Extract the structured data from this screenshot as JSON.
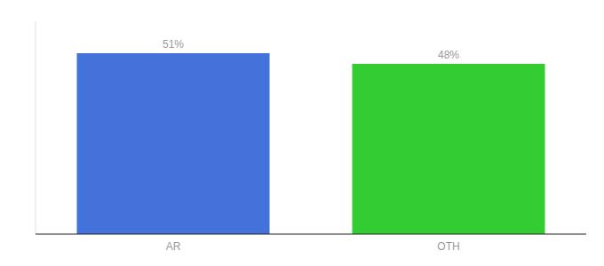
{
  "chart_data": {
    "type": "bar",
    "categories": [
      "AR",
      "OTH"
    ],
    "values": [
      51,
      48
    ],
    "value_labels": [
      "51%",
      "48%"
    ],
    "colors": [
      "#4472DB",
      "#33CC33"
    ],
    "ylim": [
      0,
      60
    ],
    "data_labels": true,
    "tick_labels": "x",
    "grid": false
  }
}
